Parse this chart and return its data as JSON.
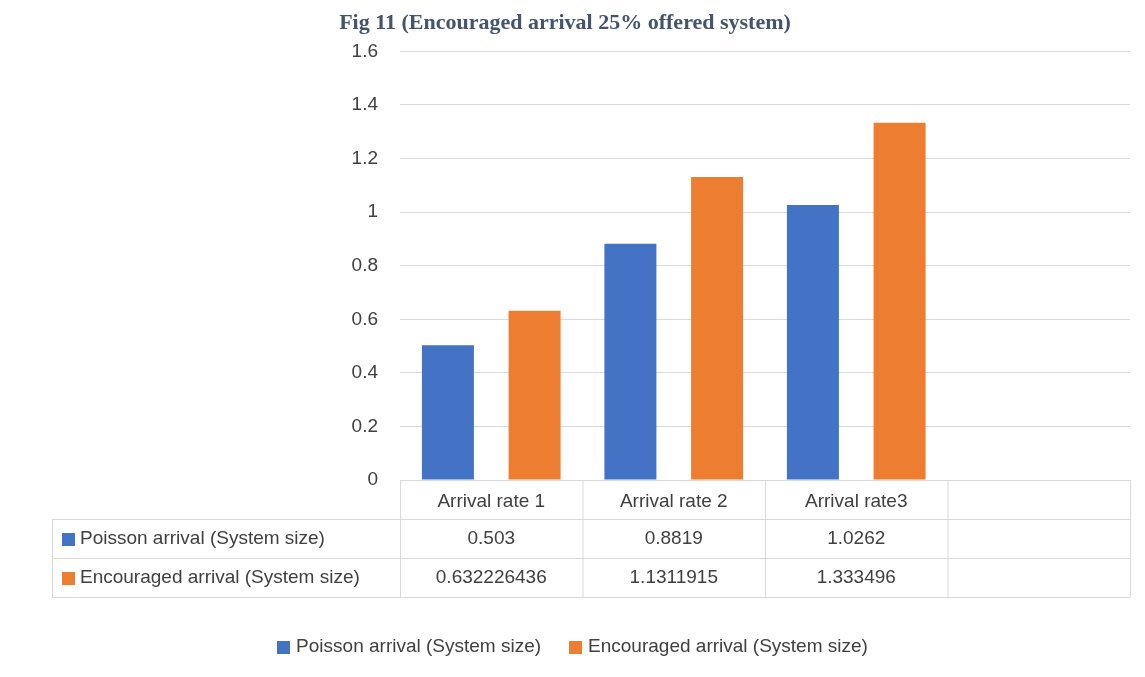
{
  "chart_data": {
    "type": "bar",
    "title": "Fig 11 (Encouraged arrival 25% offered system)",
    "categories": [
      "Arrival rate 1",
      "Arrival rate 2",
      "Arrival rate3",
      null
    ],
    "series": [
      {
        "name": "Poisson arrival (System size)",
        "color": "#4472c4",
        "values": [
          0.503,
          0.8819,
          1.0262,
          null
        ]
      },
      {
        "name": "Encouraged arrival (System size)",
        "color": "#ed7d31",
        "values": [
          0.632226436,
          1.1311915,
          1.333496,
          null
        ]
      }
    ],
    "ylim": [
      0,
      1.6
    ],
    "yticks": [
      0,
      0.2,
      0.4,
      0.6,
      0.8,
      1,
      1.2,
      1.4,
      1.6
    ],
    "grid": "y",
    "legend": "bottom",
    "data_labels": true
  }
}
